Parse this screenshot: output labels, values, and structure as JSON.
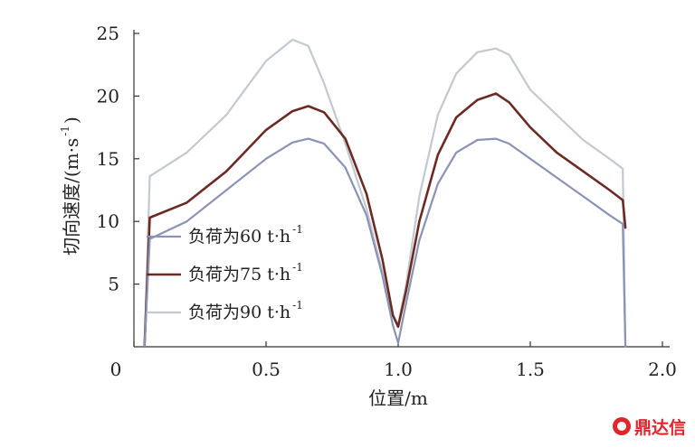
{
  "chart_data": {
    "type": "line",
    "title": "",
    "xlabel": "位置/m",
    "ylabel": "切向速度/(m·s",
    "ylabel_sup": "-1",
    "ylabel_close": ")",
    "xlim": [
      0,
      2.0
    ],
    "ylim": [
      0,
      25
    ],
    "xticks": [
      0,
      0.5,
      1.0,
      1.5,
      2.0
    ],
    "xtick_labels": [
      "0",
      "0.5",
      "1.0",
      "1.5",
      "2.0"
    ],
    "yticks": [
      5,
      10,
      15,
      20,
      25
    ],
    "ytick_labels": [
      "5",
      "10",
      "15",
      "20",
      "25"
    ],
    "grid": false,
    "legend_position": "center-left",
    "series": [
      {
        "name": "负荷为60 t·h",
        "name_sup": "-1",
        "color": "#8a93b4",
        "x": [
          0.04,
          0.06,
          0.2,
          0.35,
          0.5,
          0.6,
          0.66,
          0.72,
          0.8,
          0.88,
          0.94,
          0.98,
          1.0,
          1.03,
          1.08,
          1.15,
          1.22,
          1.3,
          1.37,
          1.42,
          1.5,
          1.6,
          1.7,
          1.8,
          1.85,
          1.86
        ],
        "y": [
          0,
          8.6,
          10.0,
          12.5,
          15.0,
          16.3,
          16.6,
          16.2,
          14.3,
          10.5,
          5.7,
          1.7,
          0.3,
          3.5,
          8.5,
          13.0,
          15.5,
          16.5,
          16.6,
          16.2,
          15.0,
          13.5,
          12.0,
          10.5,
          9.8,
          0
        ]
      },
      {
        "name": "负荷为75 t·h",
        "name_sup": "-1",
        "color": "#6b2b24",
        "x": [
          0.04,
          0.06,
          0.2,
          0.35,
          0.5,
          0.6,
          0.66,
          0.72,
          0.8,
          0.88,
          0.94,
          0.98,
          1.0,
          1.03,
          1.08,
          1.15,
          1.22,
          1.3,
          1.37,
          1.42,
          1.5,
          1.6,
          1.7,
          1.8,
          1.85,
          1.86
        ],
        "y": [
          0,
          10.3,
          11.5,
          14.0,
          17.3,
          18.8,
          19.2,
          18.7,
          16.6,
          12.2,
          7.0,
          2.5,
          1.6,
          4.5,
          10.0,
          15.3,
          18.3,
          19.7,
          20.2,
          19.5,
          17.5,
          15.5,
          14.0,
          12.5,
          11.7,
          9.5
        ]
      },
      {
        "name": "负荷为90 t·h",
        "name_sup": "-1",
        "color": "#c2c9d1",
        "x": [
          0.04,
          0.06,
          0.2,
          0.35,
          0.5,
          0.6,
          0.66,
          0.72,
          0.8,
          0.88,
          0.94,
          0.98,
          1.0,
          1.03,
          1.08,
          1.15,
          1.22,
          1.3,
          1.37,
          1.42,
          1.5,
          1.6,
          1.7,
          1.8,
          1.85,
          1.86
        ],
        "y": [
          0,
          13.6,
          15.5,
          18.5,
          22.8,
          24.5,
          24.0,
          21.0,
          16.2,
          11.0,
          6.0,
          2.5,
          1.8,
          5.0,
          12.0,
          18.5,
          21.8,
          23.5,
          23.8,
          23.3,
          20.5,
          18.5,
          16.5,
          15.0,
          14.2,
          0
        ]
      }
    ]
  },
  "watermark": {
    "text": "鼎达信",
    "color": "#e0252b"
  }
}
